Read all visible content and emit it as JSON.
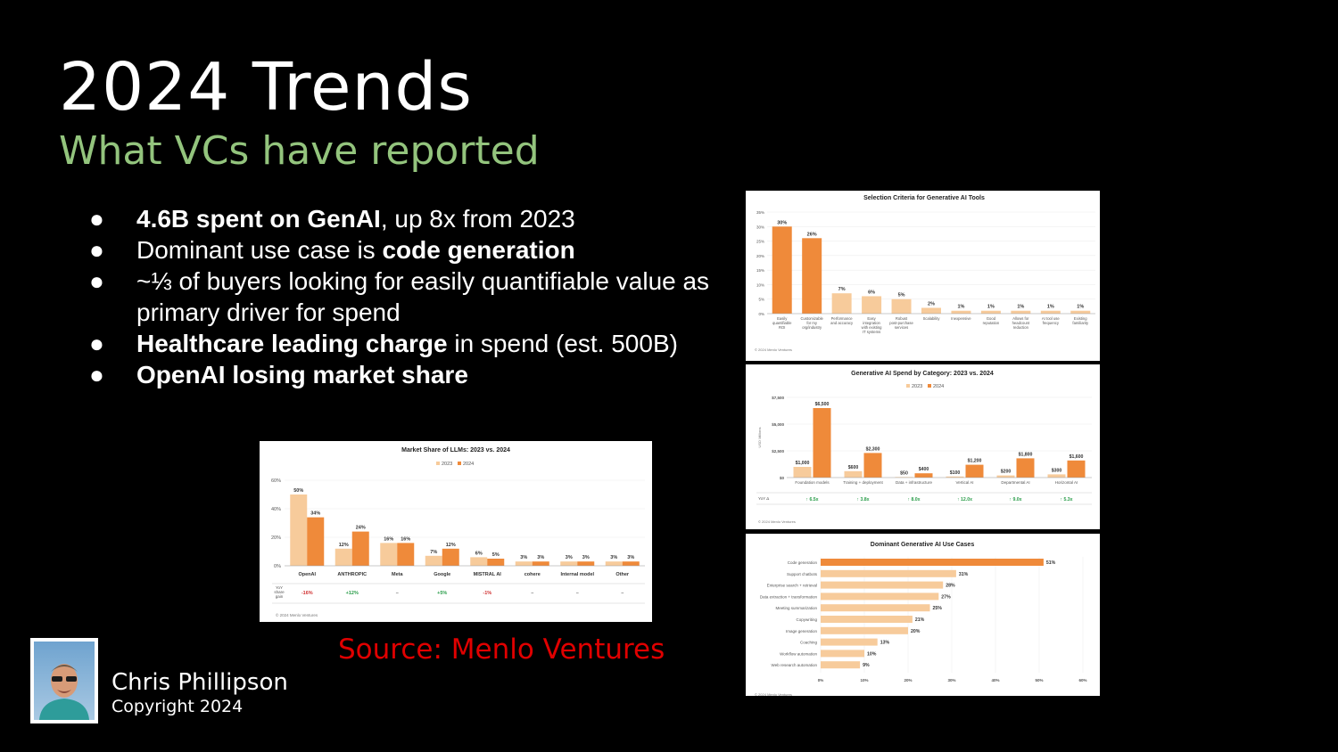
{
  "slide": {
    "title": "2024 Trends",
    "subtitle": "What VCs have reported",
    "source": "Source: Menlo Ventures",
    "author": {
      "name": "Chris Phillipson",
      "copyright": "Copyright 2024"
    },
    "bullet_glyph": "●",
    "bullets": [
      {
        "bold": "4.6B spent on GenAI",
        "rest": ", up 8x from 2023"
      },
      {
        "pre": "Dominant use case is ",
        "bold": "code generation"
      },
      {
        "pre": "~⅓ of buyers looking for easily quantifiable value as primary driver for spend"
      },
      {
        "bold": "Healthcare leading charge",
        "rest": " in spend (est. 500B)"
      },
      {
        "bold": "OpenAI losing market share"
      }
    ]
  },
  "colors": {
    "background": "#000000",
    "subtitle": "#93c47d",
    "source": "#e00000",
    "c2023": "#f7cb9b",
    "c2024": "#ef8a3a"
  },
  "chart_data": [
    {
      "type": "bar",
      "title": "Market Share of LLMs: 2023 vs. 2024",
      "legend": [
        "2023",
        "2024"
      ],
      "categories": [
        "OpenAI",
        "ANTHROPIC",
        "Meta",
        "Google",
        "MISTRAL AI",
        "cohere",
        "Internal model",
        "Other"
      ],
      "series": [
        {
          "name": "2023",
          "values": [
            50,
            12,
            16,
            7,
            6,
            3,
            3,
            3
          ]
        },
        {
          "name": "2024",
          "values": [
            34,
            24,
            16,
            12,
            5,
            3,
            3,
            3
          ]
        }
      ],
      "ylim": [
        0,
        60
      ],
      "yticks": [
        "60%",
        "40%",
        "20%",
        "0%"
      ],
      "row_label": "YoY share gain",
      "row_values": [
        "-16%",
        "+12%",
        "–",
        "+5%",
        "-1%",
        "–",
        "–",
        "–"
      ],
      "footer": "© 2024 Menlo Ventures"
    },
    {
      "type": "bar",
      "title": "Selection Criteria for Generative AI Tools",
      "categories": [
        "Easily quantifiable ROI",
        "Customizable for my org/industry",
        "Performance and accuracy",
        "Easy integration with existing IT systems",
        "Robust post-purchase services",
        "Scalability",
        "Inexpensive",
        "Good reputation",
        "Allows for headcount reduction",
        "AI tool use frequency",
        "Existing familiarity"
      ],
      "values": [
        30,
        26,
        7,
        6,
        5,
        2,
        1,
        1,
        1,
        1,
        1
      ],
      "ylim": [
        0,
        35
      ],
      "yticks": [
        "35%",
        "30%",
        "25%",
        "20%",
        "15%",
        "10%",
        "5%",
        "0%"
      ],
      "footer": "© 2024 Menlo Ventures"
    },
    {
      "type": "bar",
      "title": "Generative AI Spend by Category: 2023 vs. 2024",
      "legend": [
        "2023",
        "2024"
      ],
      "ylabel": "USD Millions",
      "categories": [
        "Foundation models",
        "Training + deployment",
        "Data + infrastructure",
        "Vertical AI",
        "Departmental AI",
        "Horizontal AI"
      ],
      "series": [
        {
          "name": "2023",
          "values": [
            1000,
            600,
            50,
            100,
            200,
            300
          ],
          "labels": [
            "$1,000",
            "$600",
            "$50",
            "$100",
            "$200",
            "$300"
          ]
        },
        {
          "name": "2024",
          "values": [
            6500,
            2300,
            400,
            1200,
            1800,
            1600
          ],
          "labels": [
            "$6,500",
            "$2,300",
            "$400",
            "$1,200",
            "$1,800",
            "$1,600"
          ]
        }
      ],
      "ylim": [
        0,
        7500
      ],
      "yticks": [
        "$7,500",
        "$5,000",
        "$2,500",
        "$0"
      ],
      "row_label": "YoY Δ",
      "row_values": [
        "6.5x",
        "3.8x",
        "8.0x",
        "12.0x",
        "9.0x",
        "5.3x"
      ],
      "footer": "© 2024 Menlo Ventures"
    },
    {
      "type": "bar",
      "orientation": "horizontal",
      "title": "Dominant Generative AI Use Cases",
      "categories": [
        "Code generation",
        "Support chatbots",
        "Enterprise search + retrieval",
        "Data extraction + transformation",
        "Meeting summarization",
        "Copywriting",
        "Image generation",
        "Coaching",
        "Workflow automation",
        "Web research automation"
      ],
      "values": [
        51,
        31,
        28,
        27,
        25,
        21,
        20,
        13,
        10,
        9
      ],
      "xlim": [
        0,
        60
      ],
      "xticks": [
        "0%",
        "10%",
        "20%",
        "30%",
        "40%",
        "50%",
        "60%"
      ],
      "footer": "© 2024 Menlo Ventures"
    }
  ]
}
